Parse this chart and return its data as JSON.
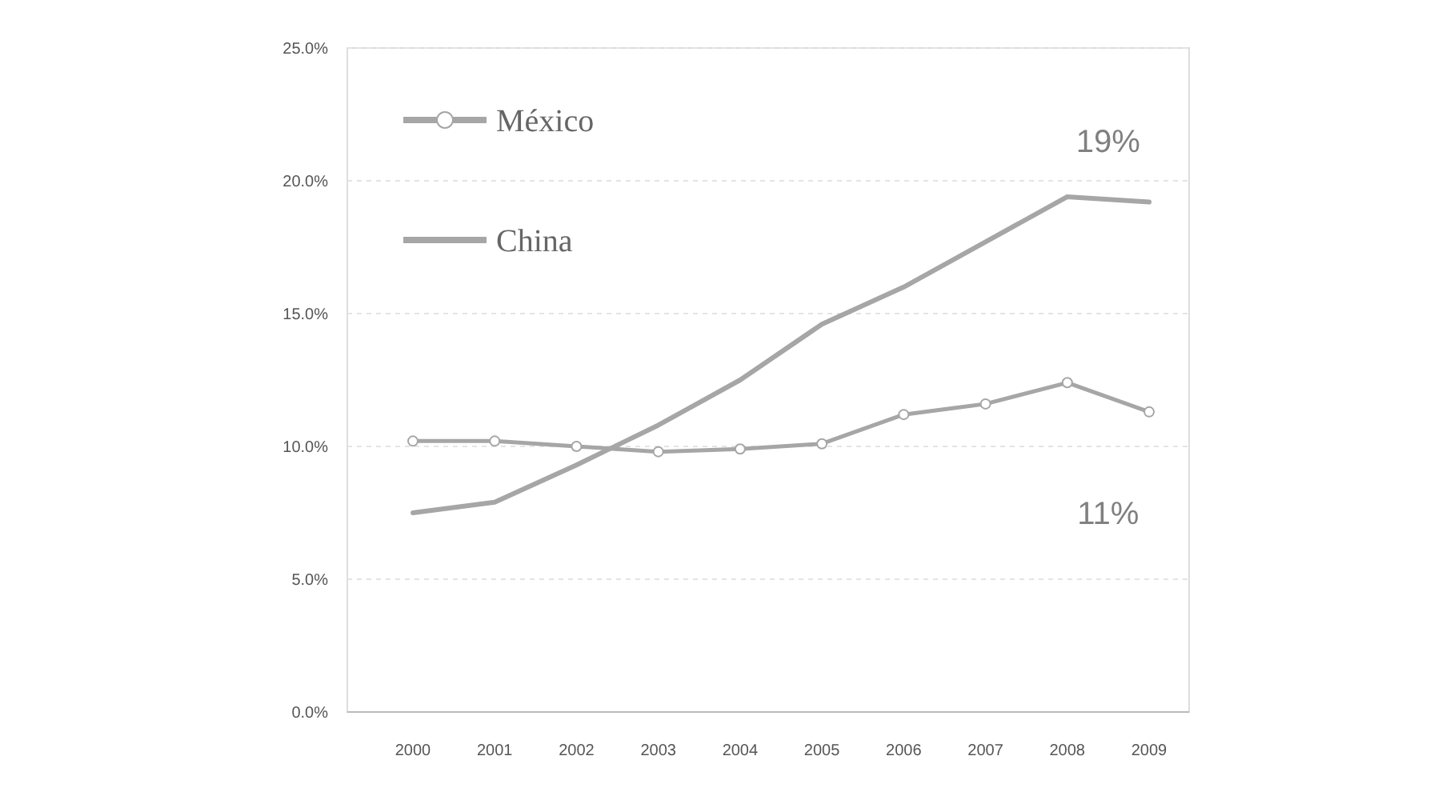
{
  "chart_data": {
    "type": "line",
    "categories": [
      "2000",
      "2001",
      "2002",
      "2003",
      "2004",
      "2005",
      "2006",
      "2007",
      "2008",
      "2009"
    ],
    "series": [
      {
        "name": "México",
        "color": "#a6a6a6",
        "marker": "circle",
        "values": [
          10.2,
          10.2,
          10.0,
          9.8,
          9.9,
          10.1,
          11.2,
          11.6,
          12.4,
          11.3
        ]
      },
      {
        "name": "China",
        "color": "#a6a6a6",
        "marker": "none",
        "values": [
          7.5,
          7.9,
          9.3,
          10.8,
          12.5,
          14.6,
          16.0,
          17.7,
          19.4,
          19.2
        ]
      }
    ],
    "ylim": [
      0,
      25
    ],
    "yticks": [
      {
        "value": 0,
        "label": "0.0%"
      },
      {
        "value": 5,
        "label": "5.0%"
      },
      {
        "value": 10,
        "label": "10.0%"
      },
      {
        "value": 15,
        "label": "15.0%"
      },
      {
        "value": 20,
        "label": "20.0%"
      },
      {
        "value": 25,
        "label": "25.0%"
      }
    ],
    "grid": "y",
    "legend": "top left",
    "line_style": "solid",
    "annotations": [
      "11%",
      "19%"
    ]
  }
}
